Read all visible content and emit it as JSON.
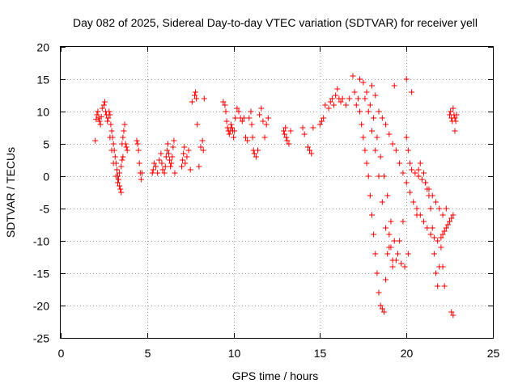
{
  "chart_data": {
    "type": "scatter",
    "title": "Day 082 of 2025, Sidereal Day-to-day VTEC variation (SDTVAR) for receiver yell",
    "xlabel": "GPS time / hours",
    "ylabel": "SDTVAR / TECUs",
    "xlim": [
      0,
      25
    ],
    "ylim": [
      -25,
      20
    ],
    "xticks": [
      "0",
      "5",
      "10",
      "15",
      "20",
      "25"
    ],
    "yticks": [
      "20",
      "15",
      "10",
      "5",
      "0",
      "-5",
      "-10",
      "-15",
      "-20",
      "-25"
    ],
    "grid": true,
    "marker": "plus",
    "color": "#ff0000",
    "series": [
      {
        "name": "SDTVAR",
        "x": [
          2.0,
          2.05,
          2.1,
          2.15,
          2.2,
          2.25,
          2.3,
          2.35,
          2.4,
          2.5,
          2.55,
          2.6,
          2.65,
          2.7,
          2.75,
          2.8,
          2.85,
          2.9,
          2.95,
          3.0,
          3.05,
          3.1,
          3.15,
          3.2,
          3.25,
          3.3,
          3.35,
          3.4,
          3.45,
          3.5,
          3.55,
          3.6,
          3.65,
          3.7,
          3.75,
          3.8,
          3.85,
          2.85,
          2.95,
          3.05,
          3.2,
          3.3,
          3.4,
          3.5,
          3.55,
          3.6,
          4.4,
          4.45,
          4.5,
          4.55,
          4.6,
          4.65,
          4.7,
          5.3,
          5.35,
          5.4,
          5.5,
          5.6,
          5.7,
          5.8,
          5.85,
          5.9,
          6.0,
          6.05,
          6.1,
          6.15,
          6.2,
          6.25,
          6.3,
          6.35,
          6.4,
          6.45,
          6.5,
          6.55,
          6.6,
          7.0,
          7.05,
          7.1,
          7.15,
          7.2,
          7.3,
          7.4,
          7.5,
          7.6,
          7.75,
          7.8,
          7.85,
          7.9,
          8.0,
          8.1,
          8.2,
          8.25,
          8.3,
          9.4,
          9.5,
          9.55,
          9.6,
          9.65,
          9.7,
          9.75,
          9.8,
          9.85,
          9.9,
          9.95,
          10.0,
          10.05,
          10.1,
          10.2,
          10.3,
          10.4,
          10.5,
          10.6,
          10.7,
          10.8,
          10.9,
          11.0,
          11.05,
          11.1,
          11.15,
          11.2,
          11.3,
          11.4,
          11.5,
          11.6,
          11.7,
          11.8,
          11.9,
          12.0,
          12.9,
          12.95,
          13.0,
          13.05,
          13.1,
          13.2,
          13.3,
          14.0,
          14.1,
          14.3,
          14.4,
          14.5,
          14.6,
          15.0,
          15.1,
          15.2,
          15.3,
          15.5,
          15.6,
          15.7,
          15.8,
          15.9,
          16.0,
          16.1,
          16.2,
          16.3,
          16.5,
          16.7,
          16.9,
          17.0,
          17.1,
          17.2,
          17.3,
          17.4,
          17.5,
          17.6,
          17.7,
          17.8,
          17.9,
          18.0,
          18.1,
          18.2,
          18.3,
          18.4,
          18.5,
          18.6,
          18.7,
          18.8,
          18.9,
          19.0,
          19.1,
          19.2,
          19.3,
          17.3,
          17.5,
          17.7,
          17.9,
          18.1,
          18.3,
          18.5,
          18.7,
          18.9,
          19.1,
          19.3,
          19.5,
          19.7,
          19.9,
          20.1,
          20.3,
          17.6,
          17.8,
          18.0,
          18.2,
          18.4,
          18.6,
          18.8,
          19.0,
          19.2,
          19.4,
          19.6,
          19.8,
          20.0,
          18.0,
          18.2,
          18.4,
          18.6,
          18.8,
          19.0,
          19.2,
          19.4,
          19.6,
          19.8,
          20.0,
          20.2,
          20.4,
          20.6,
          20.8,
          21.0,
          21.2,
          21.4,
          21.6,
          21.8,
          22.0,
          22.1,
          22.2,
          22.3,
          22.4,
          22.5,
          22.6,
          22.7,
          22.8,
          20.0,
          20.1,
          20.2,
          20.3,
          20.5,
          20.7,
          20.9,
          21.1,
          21.3,
          21.5,
          21.7,
          21.9,
          22.1,
          22.3,
          20.6,
          20.7,
          20.8,
          21.0,
          21.1,
          21.2,
          21.3,
          21.4,
          21.5,
          21.6,
          21.7,
          21.8,
          21.9,
          22.0,
          22.1,
          22.2,
          22.5,
          22.55,
          22.6,
          22.65,
          22.7,
          22.75,
          22.8,
          22.85,
          22.9,
          22.6,
          22.7
        ],
        "y": [
          5.5,
          8.8,
          9.5,
          10.0,
          9.0,
          8.5,
          8.0,
          9.2,
          10.5,
          11.0,
          11.5,
          10.0,
          9.5,
          8.5,
          9.0,
          10.0,
          9.5,
          8.0,
          7.0,
          6.0,
          5.0,
          4.0,
          3.0,
          2.0,
          1.0,
          0.0,
          -0.5,
          -1.5,
          -2.0,
          -2.5,
          5.0,
          6.0,
          7.0,
          8.0,
          5.0,
          4.5,
          4.0,
          6.0,
          4.0,
          2.0,
          0.0,
          -1.0,
          0.5,
          1.5,
          2.5,
          3.0,
          5.5,
          5.0,
          4.0,
          2.0,
          0.5,
          -0.5,
          0.5,
          0.5,
          1.0,
          2.0,
          1.5,
          0.5,
          2.5,
          3.5,
          2.0,
          1.0,
          0.5,
          1.5,
          3.0,
          4.0,
          5.0,
          3.5,
          2.5,
          1.5,
          2.0,
          3.0,
          4.5,
          5.5,
          0.5,
          1.5,
          2.5,
          3.5,
          4.5,
          2.0,
          3.0,
          4.0,
          1.0,
          11.5,
          12.5,
          13.0,
          12.0,
          8.0,
          1.5,
          4.5,
          5.5,
          4.0,
          12.0,
          11.5,
          11.0,
          10.0,
          8.5,
          7.5,
          7.0,
          6.5,
          7.0,
          8.0,
          7.5,
          7.0,
          6.0,
          7.0,
          9.0,
          10.5,
          10.0,
          9.0,
          8.5,
          9.0,
          6.0,
          5.5,
          9.0,
          10.0,
          8.0,
          6.0,
          4.0,
          3.5,
          3.0,
          4.0,
          9.5,
          10.5,
          8.5,
          6.0,
          8.0,
          9.0,
          7.0,
          6.5,
          7.5,
          6.0,
          5.5,
          5.0,
          7.0,
          7.5,
          6.5,
          4.5,
          4.0,
          3.5,
          7.5,
          8.0,
          8.5,
          9.0,
          11.0,
          10.5,
          11.5,
          12.0,
          11.0,
          12.5,
          13.5,
          12.0,
          11.5,
          12.0,
          11.0,
          12.0,
          15.5,
          13.0,
          11.0,
          12.0,
          10.0,
          8.0,
          6.0,
          4.0,
          2.0,
          0.0,
          -3.0,
          -6.0,
          -9.0,
          -12.0,
          -15.0,
          -18.0,
          -20.0,
          -20.5,
          -21.0,
          -16.0,
          -12.0,
          -9.0,
          -11.0,
          -13.0,
          14.0,
          15.0,
          14.5,
          13.0,
          11.0,
          9.0,
          6.0,
          3.0,
          0.0,
          -3.0,
          -7.0,
          -10.0,
          -12.0,
          -13.5,
          -14.0,
          -12.0,
          13.0,
          12.0,
          10.0,
          7.0,
          4.0,
          0.0,
          -4.0,
          -8.0,
          -11.0,
          -14.0,
          -13.0,
          -10.0,
          -7.0,
          15.0,
          14.0,
          12.5,
          10.0,
          9.0,
          8.0,
          6.5,
          5.0,
          4.0,
          2.0,
          0.5,
          -1.0,
          -2.5,
          -4.0,
          -5.0,
          -6.0,
          -7.0,
          -8.0,
          -9.0,
          -9.5,
          -10.0,
          -9.5,
          -9.0,
          -8.5,
          -8.0,
          -7.5,
          -7.0,
          -6.5,
          -6.0,
          7.0,
          6.0,
          4.0,
          2.0,
          1.0,
          0.5,
          0.0,
          -0.5,
          -1.0,
          -2.0,
          -3.0,
          -4.0,
          -5.0,
          -6.0,
          -5.0,
          -6.0,
          1.0,
          2.0,
          0.5,
          -1.0,
          -2.0,
          -3.0,
          -5.0,
          -8.0,
          -12.0,
          -15.0,
          -17.0,
          -14.0,
          -11.0,
          -14.0,
          -17.0,
          9.5,
          10.0,
          9.0,
          8.5,
          10.5,
          9.5,
          9.0,
          8.5,
          9.5,
          -21.0,
          -21.5
        ]
      }
    ]
  }
}
